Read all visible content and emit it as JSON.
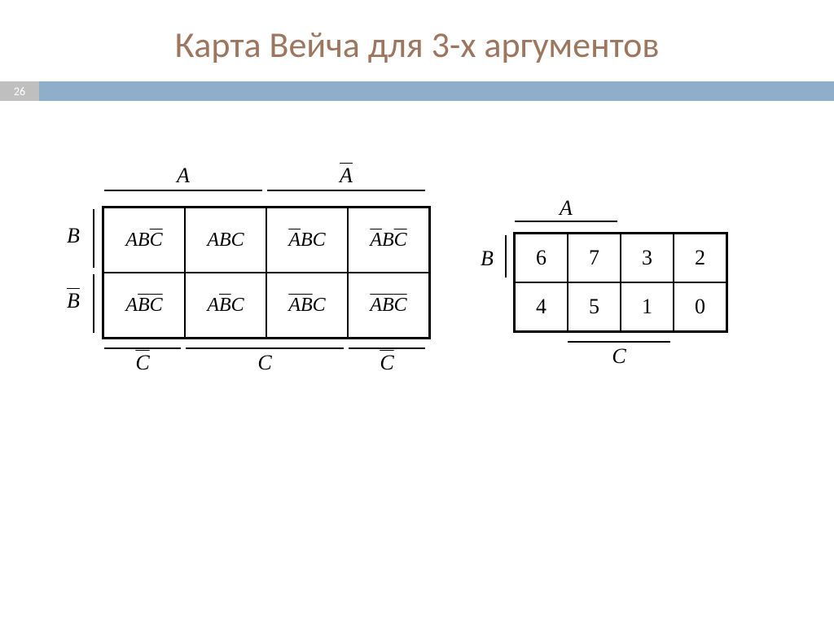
{
  "colors": {
    "title": "#9d7660",
    "accent_bar": "#8faec9",
    "badge_bg": "#bfbfbf",
    "line": "#000000",
    "bg": "#ffffff"
  },
  "slide": {
    "page_number": "26",
    "title": "Карта Вейча для 3-х аргументов"
  },
  "left_map": {
    "type": "veitch-map",
    "top_labels": {
      "A": "A",
      "Abar": "A"
    },
    "left_labels": {
      "B": "B",
      "Bbar": "B"
    },
    "bottom_labels": {
      "C": "C",
      "Cbar_left": "C",
      "Cbar_right": "C"
    },
    "cells": {
      "r0c0": {
        "A": "A",
        "B": "B",
        "C": "C",
        "Abar": false,
        "Bbar": false,
        "Cbar": true
      },
      "r0c1": {
        "A": "A",
        "B": "B",
        "C": "C",
        "Abar": false,
        "Bbar": false,
        "Cbar": false
      },
      "r0c2": {
        "A": "A",
        "B": "B",
        "C": "C",
        "Abar": true,
        "Bbar": false,
        "Cbar": false
      },
      "r0c3": {
        "A": "A",
        "B": "B",
        "C": "C",
        "Abar": true,
        "Bbar": false,
        "Cbar": true
      },
      "r1c0": {
        "A": "A",
        "B": "B",
        "C": "C",
        "Abar": false,
        "Bbar": true,
        "Cbar": true
      },
      "r1c1": {
        "A": "A",
        "B": "B",
        "C": "C",
        "Abar": false,
        "Bbar": true,
        "Cbar": false
      },
      "r1c2": {
        "A": "A",
        "B": "B",
        "C": "C",
        "Abar": true,
        "Bbar": true,
        "Cbar": false
      },
      "r1c3": {
        "A": "A",
        "B": "B",
        "C": "C",
        "Abar": true,
        "Bbar": true,
        "Cbar": true
      }
    }
  },
  "right_map": {
    "type": "veitch-map-numeric",
    "top_label": "A",
    "left_label": "B",
    "bottom_label": "C",
    "cells": {
      "r0c0": "6",
      "r0c1": "7",
      "r0c2": "3",
      "r0c3": "2",
      "r1c0": "4",
      "r1c1": "5",
      "r1c2": "1",
      "r1c3": "0"
    }
  }
}
